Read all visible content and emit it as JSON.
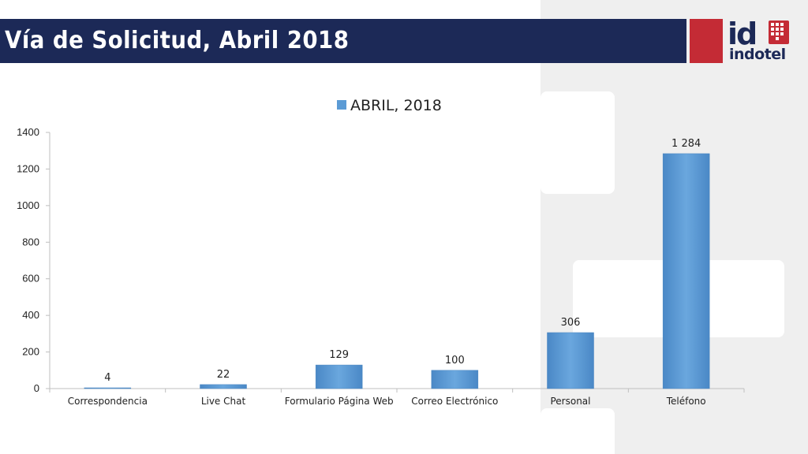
{
  "header": {
    "title": "Vía de Solicitud, Abril 2018",
    "logo_text": "indotel",
    "logo_mark": "id"
  },
  "colors": {
    "title_bar": "#1c2957",
    "logo_red": "#c42b35",
    "bar": "#5b9bd5"
  },
  "chart_data": {
    "type": "bar",
    "categories": [
      "Correspondencia",
      "Live Chat",
      "Formulario Página Web",
      "Correo Electrónico",
      "Personal",
      "Teléfono"
    ],
    "series": [
      {
        "name": "ABRIL, 2018",
        "values": [
          4,
          22,
          129,
          100,
          306,
          1284
        ]
      }
    ],
    "data_labels": [
      "4",
      "22",
      "129",
      "100",
      "306",
      "1 284"
    ],
    "y_ticks": [
      "0",
      "200",
      "400",
      "600",
      "800",
      "1000",
      "1200",
      "1400"
    ],
    "ylim": [
      0,
      1400
    ],
    "legend_position": "top-center",
    "grid": false
  }
}
